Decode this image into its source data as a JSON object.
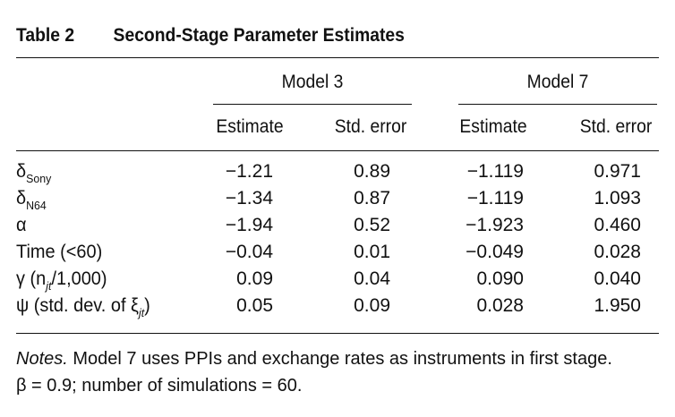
{
  "table": {
    "number": "Table 2",
    "title": "Second-Stage Parameter Estimates",
    "groups": [
      "Model 3",
      "Model 7"
    ],
    "columns": [
      "Estimate",
      "Std. error",
      "Estimate",
      "Std. error"
    ],
    "rows": [
      {
        "label": "δ",
        "sub": "Sony",
        "suffix": "",
        "values": [
          "−1.21",
          "0.89",
          "−1.119",
          "0.971"
        ]
      },
      {
        "label": "δ",
        "sub": "N64",
        "suffix": "",
        "values": [
          "−1.34",
          "0.87",
          "−1.119",
          "1.093"
        ]
      },
      {
        "label": "α",
        "sub": "",
        "suffix": "",
        "values": [
          "−1.94",
          "0.52",
          "−1.923",
          "0.460"
        ]
      },
      {
        "label": "Time (<60)",
        "sub": "",
        "suffix": "",
        "values": [
          "−0.04",
          "0.01",
          "−0.049",
          "0.028"
        ]
      },
      {
        "label": "γ (n",
        "sub": "jt",
        "suffix": "/1,000)",
        "values": [
          "0.09",
          "0.04",
          "0.090",
          "0.040"
        ]
      },
      {
        "label": "ψ (std. dev. of ξ",
        "sub": "jt",
        "suffix": ")",
        "values": [
          "0.05",
          "0.09",
          "0.028",
          "1.950"
        ]
      }
    ],
    "notes": {
      "lead": "Notes.",
      "line1": " Model 7 uses PPIs and exchange rates as instruments in first stage.",
      "line2": "β = 0.9; number of simulations = 60."
    }
  }
}
